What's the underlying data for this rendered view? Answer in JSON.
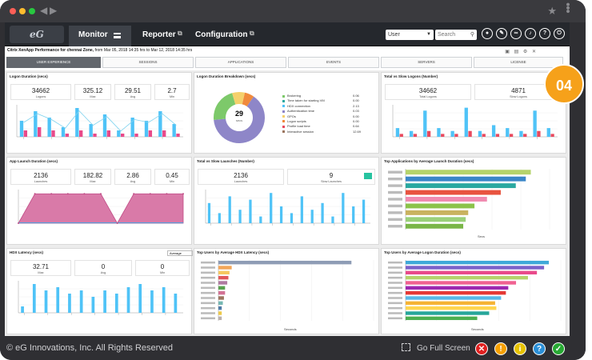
{
  "header": {
    "logo": "eG",
    "tabs": [
      {
        "label": "Monitor",
        "active": true
      },
      {
        "label": "Reporter",
        "active": false
      },
      {
        "label": "Configuration",
        "active": false
      }
    ],
    "user_select": "User",
    "search_placeholder": "Search"
  },
  "page": {
    "title_bold": "Citrix XenApp Performance for chennai Zone,",
    "title_range": "from Mar 05, 2018 14:35 hrs to Mar 12, 2018 14:35 hrs",
    "badge": "04"
  },
  "subtabs": [
    "USER EXPERIENCE",
    "SESSIONS",
    "APPLICATIONS",
    "EVENTS",
    "SERVERS",
    "LICENSE"
  ],
  "panels": {
    "logon_duration": {
      "title": "Logon Duration (secs)",
      "stats": [
        {
          "v": "34662",
          "l": "Logons"
        },
        {
          "v": "325.12",
          "l": "Max"
        },
        {
          "v": "29.51",
          "l": "Avg"
        },
        {
          "v": "2.7",
          "l": "Min"
        }
      ]
    },
    "logon_breakdown": {
      "title": "Logon Duration Breakdown (secs)",
      "center_value": "29",
      "center_unit": "secs",
      "legend": [
        {
          "label": "Brokering",
          "value": "0.06"
        },
        {
          "label": "Time taken for starting VM",
          "value": "0.00"
        },
        {
          "label": "HDX connection",
          "value": "2.13"
        },
        {
          "label": "Authentication time",
          "value": "0.03"
        },
        {
          "label": "GPOs",
          "value": "0.00"
        },
        {
          "label": "Logon scripts",
          "value": "0.00"
        },
        {
          "label": "Profile load time",
          "value": "0.64"
        },
        {
          "label": "Interactive session",
          "value": "12.69"
        }
      ]
    },
    "total_slow_logons": {
      "title": "Total vs Slow Logons (Number)",
      "stats": [
        {
          "v": "34662",
          "l": "Total Logons"
        },
        {
          "v": "4871",
          "l": "Slow Logons"
        }
      ]
    },
    "app_launch": {
      "title": "App Launch Duration (secs)",
      "stats": [
        {
          "v": "2136",
          "l": "Launches"
        },
        {
          "v": "182.82",
          "l": "Max"
        },
        {
          "v": "2.86",
          "l": "Avg"
        },
        {
          "v": "0.45",
          "l": "Min"
        }
      ]
    },
    "total_slow_launches": {
      "title": "Total vs Slow Launches (Number)",
      "stats": [
        {
          "v": "2136",
          "l": "Launches"
        },
        {
          "v": "9",
          "l": "Slow Launches"
        }
      ]
    },
    "top_apps": {
      "title": "Top Applications by Average Launch Duration (secs)",
      "xlabel": "Secs"
    },
    "hdx_latency": {
      "title": "HDX Latency (secs)",
      "dropdown": "Average",
      "stats": [
        {
          "v": "32.71",
          "l": "Max"
        },
        {
          "v": "0",
          "l": "Avg"
        },
        {
          "v": "0",
          "l": "Min"
        }
      ]
    },
    "top_users_hdx": {
      "title": "Top Users by Average HDX Latency (secs)",
      "xlabel": "Seconds"
    },
    "top_users_logon": {
      "title": "Top Users by Average Logon Duration (secs)",
      "xlabel": "Seconds"
    }
  },
  "footer": {
    "copyright": "© eG Innovations, Inc. All Rights Reserved",
    "fullscreen": "Go Full Screen",
    "status_icons": [
      {
        "name": "critical",
        "glyph": "✕",
        "color": "#e02020"
      },
      {
        "name": "major",
        "glyph": "!",
        "color": "#f5a000"
      },
      {
        "name": "info",
        "glyph": "i",
        "color": "#e6c200"
      },
      {
        "name": "help",
        "glyph": "?",
        "color": "#2b8fd6"
      },
      {
        "name": "ok",
        "glyph": "✓",
        "color": "#27a833"
      }
    ]
  },
  "chart_data": [
    {
      "type": "bar",
      "title": "Logon Duration (secs)",
      "series": [
        {
          "values": [
            5,
            8,
            6,
            3,
            9,
            4,
            7,
            2,
            6,
            5,
            8,
            4
          ]
        },
        {
          "values": [
            2,
            3,
            2,
            1,
            2,
            1,
            2,
            1,
            1,
            2,
            2,
            1
          ]
        }
      ]
    },
    {
      "type": "pie",
      "title": "Logon Duration Breakdown (secs)",
      "values": [
        0.06,
        0.0,
        2.13,
        0.03,
        0.0,
        0.0,
        0.64,
        12.69
      ]
    },
    {
      "type": "bar",
      "title": "Total vs Slow Logons (Number)",
      "series": [
        {
          "values": [
            3,
            2,
            9,
            3,
            2,
            10,
            2,
            4,
            3,
            2,
            9,
            3
          ]
        },
        {
          "values": [
            1,
            1,
            2,
            1,
            1,
            2,
            1,
            1,
            1,
            1,
            2,
            1
          ]
        }
      ]
    },
    {
      "type": "area",
      "title": "App Launch Duration (secs)",
      "values": [
        0,
        7,
        7,
        7,
        7,
        7,
        0,
        7,
        7,
        7,
        7
      ]
    },
    {
      "type": "bar",
      "title": "Total vs Slow Launches (Number)",
      "values": [
        6,
        3,
        8,
        4,
        7,
        2,
        9,
        5,
        3,
        8,
        4,
        6,
        2,
        9,
        5,
        7
      ]
    },
    {
      "type": "bar",
      "title": "Top Applications by Average Launch Duration (secs)",
      "values": [
        100,
        96,
        88,
        76,
        65,
        55,
        50,
        48,
        46
      ]
    },
    {
      "type": "bar",
      "title": "HDX Latency (secs)",
      "values": [
        2,
        9,
        7,
        8,
        6,
        7,
        5,
        7,
        6,
        8,
        9,
        7,
        8,
        6
      ]
    },
    {
      "type": "bar",
      "title": "Top Users by Average HDX Latency (secs)",
      "values": [
        12,
        1.2,
        1,
        0.9,
        0.8,
        0.6,
        0.6,
        0.5,
        0.4,
        0.3,
        0.3,
        0.3
      ]
    },
    {
      "type": "bar",
      "title": "Top Users by Average Logon Duration (secs)",
      "values": [
        240,
        232,
        220,
        205,
        185,
        172,
        168,
        160,
        150,
        152,
        140,
        120
      ]
    }
  ]
}
